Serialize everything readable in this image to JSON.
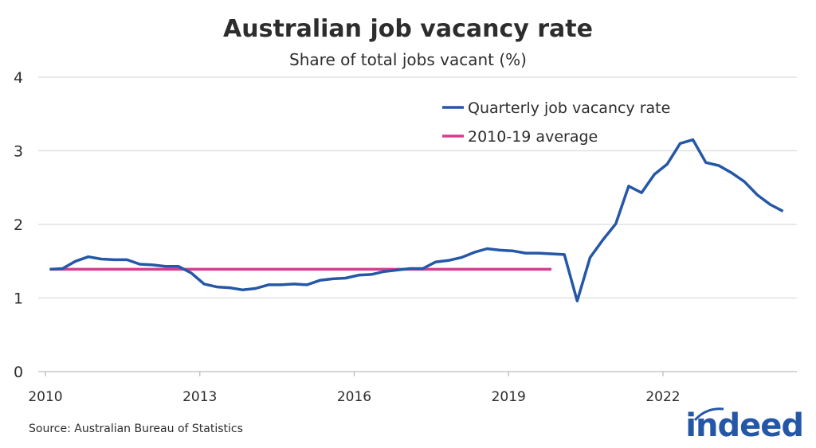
{
  "chart_data": {
    "type": "line",
    "title": "Australian job vacancy rate",
    "subtitle": "Share of total jobs vacant (%)",
    "xlabel": "",
    "ylabel": "",
    "ylim": [
      0,
      4
    ],
    "yticks": [
      "0",
      "1",
      "2",
      "3",
      "4"
    ],
    "xticks": [
      "2010",
      "2013",
      "2016",
      "2019",
      "2022"
    ],
    "grid": true,
    "legend_placement": "top-right",
    "series": [
      {
        "name": "Quarterly job vacancy rate",
        "color": "#2557a7",
        "x": [
          "2010-02",
          "2010-05",
          "2010-08",
          "2010-11",
          "2011-02",
          "2011-05",
          "2011-08",
          "2011-11",
          "2012-02",
          "2012-05",
          "2012-08",
          "2012-11",
          "2013-02",
          "2013-05",
          "2013-08",
          "2013-11",
          "2014-02",
          "2014-05",
          "2014-08",
          "2014-11",
          "2015-02",
          "2015-05",
          "2015-08",
          "2015-11",
          "2016-02",
          "2016-05",
          "2016-08",
          "2016-11",
          "2017-02",
          "2017-05",
          "2017-08",
          "2017-11",
          "2018-02",
          "2018-05",
          "2018-08",
          "2018-11",
          "2019-02",
          "2019-05",
          "2019-08",
          "2019-11",
          "2020-02",
          "2020-05",
          "2020-08",
          "2020-11",
          "2021-02",
          "2021-05",
          "2021-08",
          "2021-11",
          "2022-02",
          "2022-05",
          "2022-08",
          "2022-11",
          "2023-02",
          "2023-05",
          "2023-08",
          "2023-11",
          "2024-02",
          "2024-05"
        ],
        "values": [
          1.39,
          1.4,
          1.5,
          1.56,
          1.53,
          1.52,
          1.52,
          1.46,
          1.45,
          1.43,
          1.43,
          1.34,
          1.19,
          1.15,
          1.14,
          1.11,
          1.13,
          1.18,
          1.18,
          1.19,
          1.18,
          1.24,
          1.26,
          1.27,
          1.31,
          1.32,
          1.36,
          1.38,
          1.4,
          1.4,
          1.49,
          1.51,
          1.55,
          1.62,
          1.67,
          1.65,
          1.64,
          1.61,
          1.61,
          1.6,
          1.59,
          0.96,
          1.55,
          1.79,
          2.01,
          2.52,
          2.43,
          2.68,
          2.82,
          3.1,
          3.15,
          2.84,
          2.8,
          2.7,
          2.58,
          2.4,
          2.27,
          2.18
        ]
      },
      {
        "name": "2010-19 average",
        "color": "#d63d8f",
        "x": [
          "2010-02",
          "2019-11"
        ],
        "values": [
          1.39,
          1.39
        ]
      }
    ],
    "source": "Source: Australian Bureau of Statistics"
  },
  "logo": {
    "text": "indeed",
    "color": "#2557a7"
  }
}
